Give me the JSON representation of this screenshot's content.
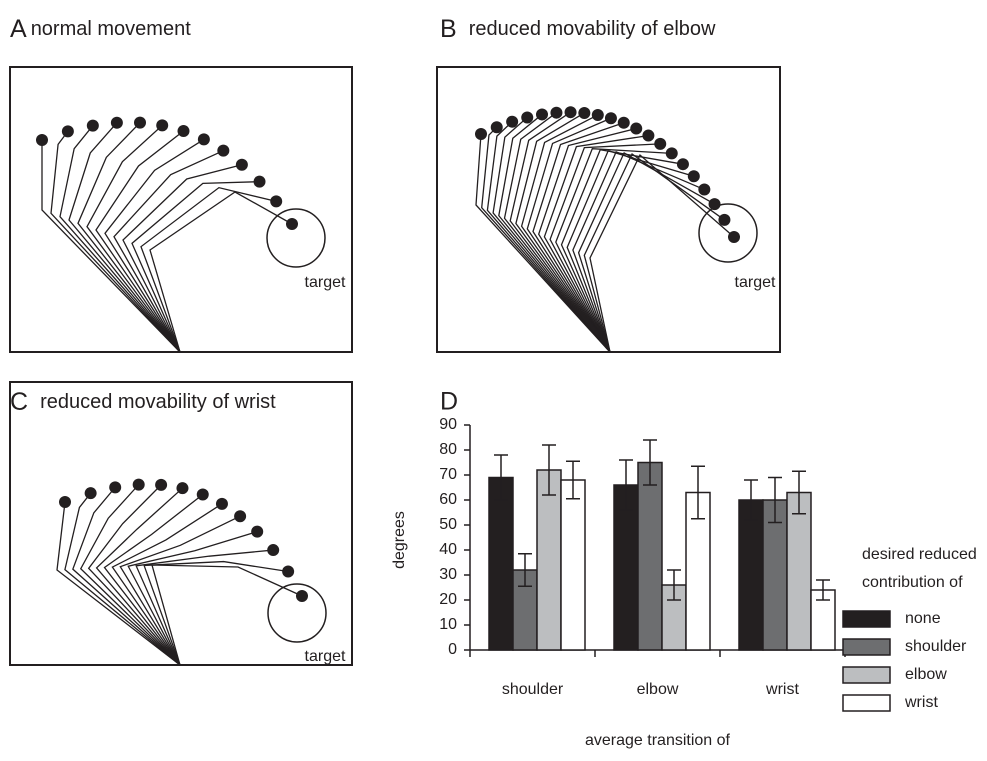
{
  "panels": [
    {
      "letter": "A",
      "title": "normal movement",
      "target": "target"
    },
    {
      "letter": "B",
      "title": "reduced movability of elbow",
      "target": "target"
    },
    {
      "letter": "C",
      "title": "reduced movability of wrist",
      "target": "target"
    }
  ],
  "chart_data": {
    "type": "bar",
    "letter": "D",
    "categories": [
      "shoulder",
      "elbow",
      "wrist"
    ],
    "x_label": "average transition of",
    "y_label": "degrees",
    "legend_title": [
      "desired reduced",
      "contribution of"
    ],
    "series": [
      {
        "name": "none",
        "color": "#231f20",
        "values": [
          69,
          66,
          60
        ],
        "errors": [
          9,
          10,
          8
        ]
      },
      {
        "name": "shoulder",
        "color": "#6d6e70",
        "values": [
          32,
          75,
          60
        ],
        "errors": [
          6.5,
          9,
          9
        ]
      },
      {
        "name": "elbow",
        "color": "#bcbec0",
        "values": [
          72,
          26,
          63
        ],
        "errors": [
          10,
          6,
          8.5
        ]
      },
      {
        "name": "wrist",
        "color": "#ffffff",
        "values": [
          68,
          63,
          24
        ],
        "errors": [
          7.5,
          10.5,
          4
        ]
      }
    ],
    "ylim": [
      0,
      90
    ],
    "yticks": [
      0,
      10,
      20,
      30,
      40,
      50,
      60,
      70,
      80,
      90
    ]
  }
}
